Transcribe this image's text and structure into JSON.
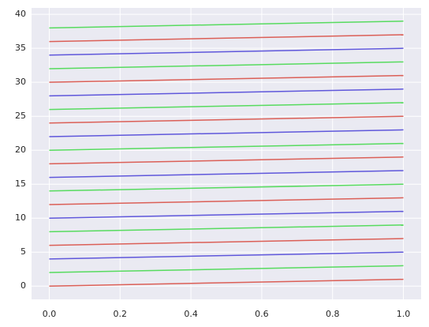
{
  "chart_data": {
    "type": "line",
    "x": [
      0,
      1
    ],
    "series": [
      {
        "color": "#db5f57",
        "values": [
          0,
          1
        ]
      },
      {
        "color": "#57db5f",
        "values": [
          2,
          3
        ]
      },
      {
        "color": "#5f57db",
        "values": [
          4,
          5
        ]
      },
      {
        "color": "#db5f57",
        "values": [
          6,
          7
        ]
      },
      {
        "color": "#57db5f",
        "values": [
          8,
          9
        ]
      },
      {
        "color": "#5f57db",
        "values": [
          10,
          11
        ]
      },
      {
        "color": "#db5f57",
        "values": [
          12,
          13
        ]
      },
      {
        "color": "#57db5f",
        "values": [
          14,
          15
        ]
      },
      {
        "color": "#5f57db",
        "values": [
          16,
          17
        ]
      },
      {
        "color": "#db5f57",
        "values": [
          18,
          19
        ]
      },
      {
        "color": "#57db5f",
        "values": [
          20,
          21
        ]
      },
      {
        "color": "#5f57db",
        "values": [
          22,
          23
        ]
      },
      {
        "color": "#db5f57",
        "values": [
          24,
          25
        ]
      },
      {
        "color": "#57db5f",
        "values": [
          26,
          27
        ]
      },
      {
        "color": "#5f57db",
        "values": [
          28,
          29
        ]
      },
      {
        "color": "#db5f57",
        "values": [
          30,
          31
        ]
      },
      {
        "color": "#57db5f",
        "values": [
          32,
          33
        ]
      },
      {
        "color": "#5f57db",
        "values": [
          34,
          35
        ]
      },
      {
        "color": "#db5f57",
        "values": [
          36,
          37
        ]
      },
      {
        "color": "#57db5f",
        "values": [
          38,
          39
        ]
      }
    ],
    "xlim": [
      -0.05,
      1.05
    ],
    "xticks": [
      {
        "value": 0,
        "label": "0.0"
      },
      {
        "value": 0.2,
        "label": "0.2"
      },
      {
        "value": 0.4,
        "label": "0.4"
      },
      {
        "value": 0.6,
        "label": "0.6"
      },
      {
        "value": 0.8,
        "label": "0.8"
      },
      {
        "value": 1,
        "label": "1.0"
      }
    ],
    "ylim": [
      -1.95,
      40.95
    ],
    "yticks": [
      0,
      5,
      10,
      15,
      20,
      25,
      30,
      35,
      40
    ],
    "grid": true
  }
}
